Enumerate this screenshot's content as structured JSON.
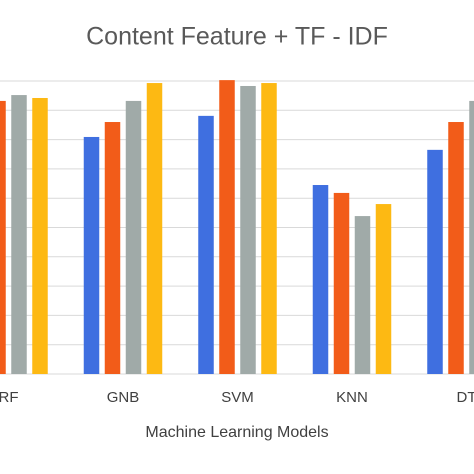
{
  "chart_data": {
    "type": "bar",
    "title": "Content Feature + TF - IDF",
    "x_label": "Machine Learning Models",
    "categories": [
      "RF",
      "GNB",
      "SVM",
      "KNN",
      "DT"
    ],
    "series": [
      {
        "color": "#3f6fe0",
        "values": [
          null,
          8.09,
          8.81,
          6.45,
          7.65
        ]
      },
      {
        "color": "#f25c19",
        "values": [
          9.32,
          8.6,
          10.03,
          6.18,
          8.6
        ]
      },
      {
        "color": "#a0aaa8",
        "values": [
          9.52,
          9.32,
          9.83,
          5.39,
          9.32
        ]
      },
      {
        "color": "#fdb913",
        "values": [
          9.42,
          9.93,
          9.93,
          5.8,
          null
        ]
      }
    ],
    "ylim": [
      0,
      10
    ],
    "yticks": [
      0,
      1,
      2,
      3,
      4,
      5,
      6,
      7,
      8,
      9,
      10
    ],
    "grid": true
  }
}
